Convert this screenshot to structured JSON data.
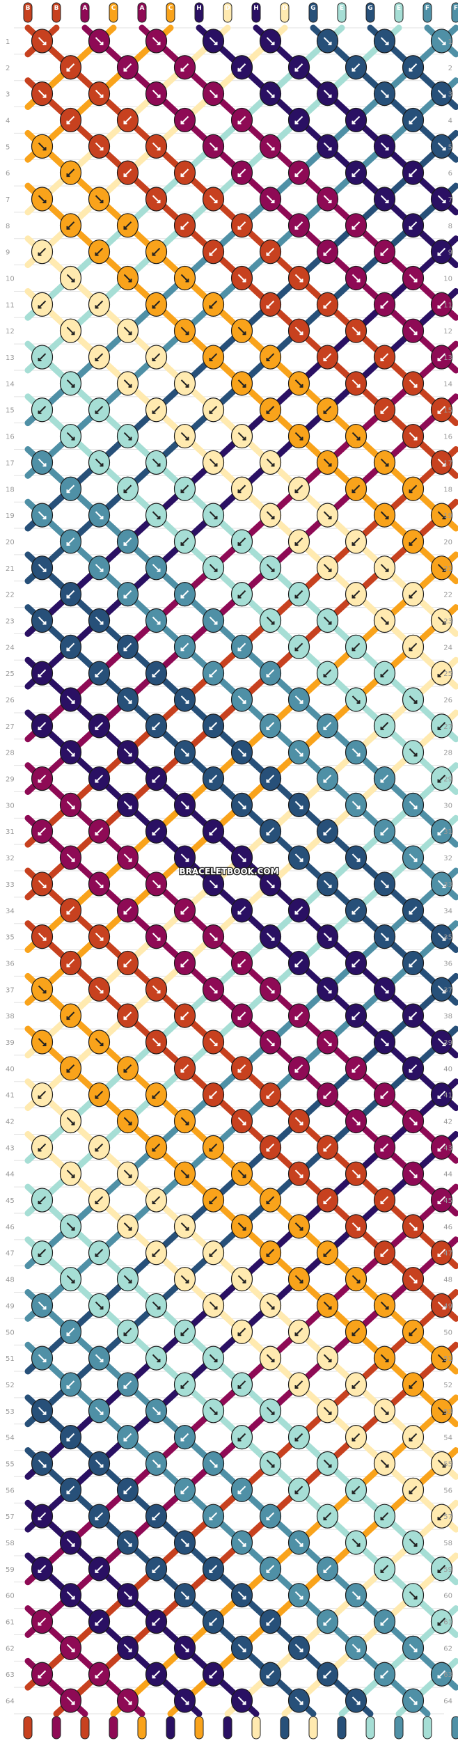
{
  "watermark": "BRACELETBOOK.COM",
  "rows": 64,
  "columns": 16,
  "string_letters": [
    "B",
    "B",
    "A",
    "C",
    "A",
    "C",
    "H",
    "D",
    "H",
    "D",
    "G",
    "E",
    "G",
    "E",
    "F",
    "F"
  ],
  "colors": {
    "A": "#8E0A55",
    "B": "#C7411F",
    "C": "#F9A31B",
    "D": "#FFEAB0",
    "E": "#A6DED5",
    "F": "#4F90A6",
    "G": "#275079",
    "H": "#2A1063"
  },
  "palette_names": {
    "A": "magenta",
    "B": "red-orange",
    "C": "orange",
    "D": "cream",
    "E": "light-teal",
    "F": "teal",
    "G": "dark-blue",
    "H": "indigo"
  }
}
